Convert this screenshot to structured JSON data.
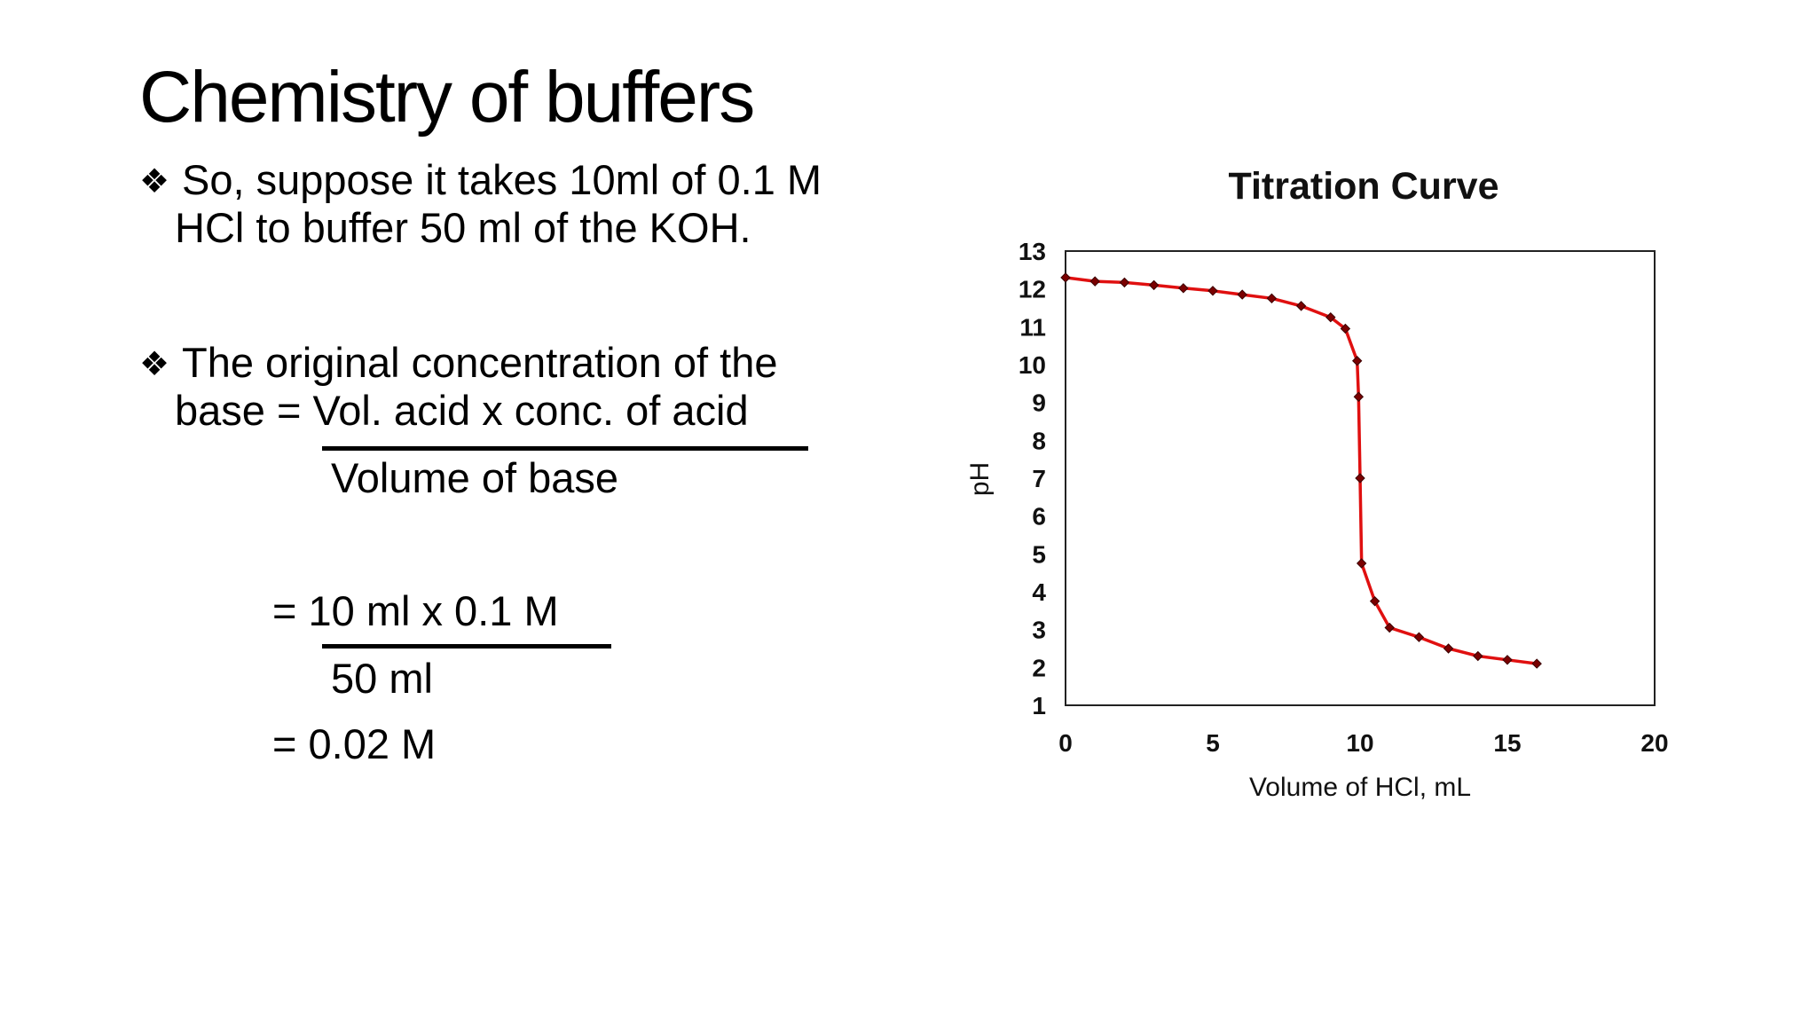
{
  "slide": {
    "title": "Chemistry of buffers",
    "bullet_glyph": "❖",
    "bullet1_line1": "So, suppose it takes 10ml of 0.1 M",
    "bullet1_line2": "HCl to buffer 50 ml of the KOH.",
    "bullet2_line1": "The original concentration of the",
    "bullet2_line2": "base = Vol. acid x conc. of acid",
    "denominator1": "Volume of base",
    "eq_numerator": "= 10 ml  x 0.1 M",
    "eq_denominator": "50 ml",
    "eq_result": "= 0.02 M"
  },
  "chart_data": {
    "type": "line",
    "title": "Titration Curve",
    "xlabel": "Volume of HCl, mL",
    "ylabel": "pH",
    "xlim": [
      0,
      20
    ],
    "ylim": [
      1,
      13
    ],
    "xticks": [
      0,
      5,
      10,
      15,
      20
    ],
    "yticks": [
      1,
      2,
      3,
      4,
      5,
      6,
      7,
      8,
      9,
      10,
      11,
      12,
      13
    ],
    "grid": false,
    "line_color": "#e01010",
    "marker_color": "#7a0000",
    "series": [
      {
        "x": [
          0,
          1,
          2,
          3,
          4,
          5,
          6,
          7,
          8,
          9,
          9.5,
          9.9,
          9.95,
          10.0,
          10.05,
          10.5,
          11,
          12,
          13,
          14,
          15,
          16
        ],
        "y": [
          12.3,
          12.2,
          12.17,
          12.1,
          12.02,
          11.95,
          11.85,
          11.75,
          11.55,
          11.25,
          10.95,
          10.1,
          9.15,
          7.0,
          4.75,
          3.75,
          3.05,
          2.8,
          2.5,
          2.3,
          2.2,
          2.1
        ]
      }
    ]
  }
}
